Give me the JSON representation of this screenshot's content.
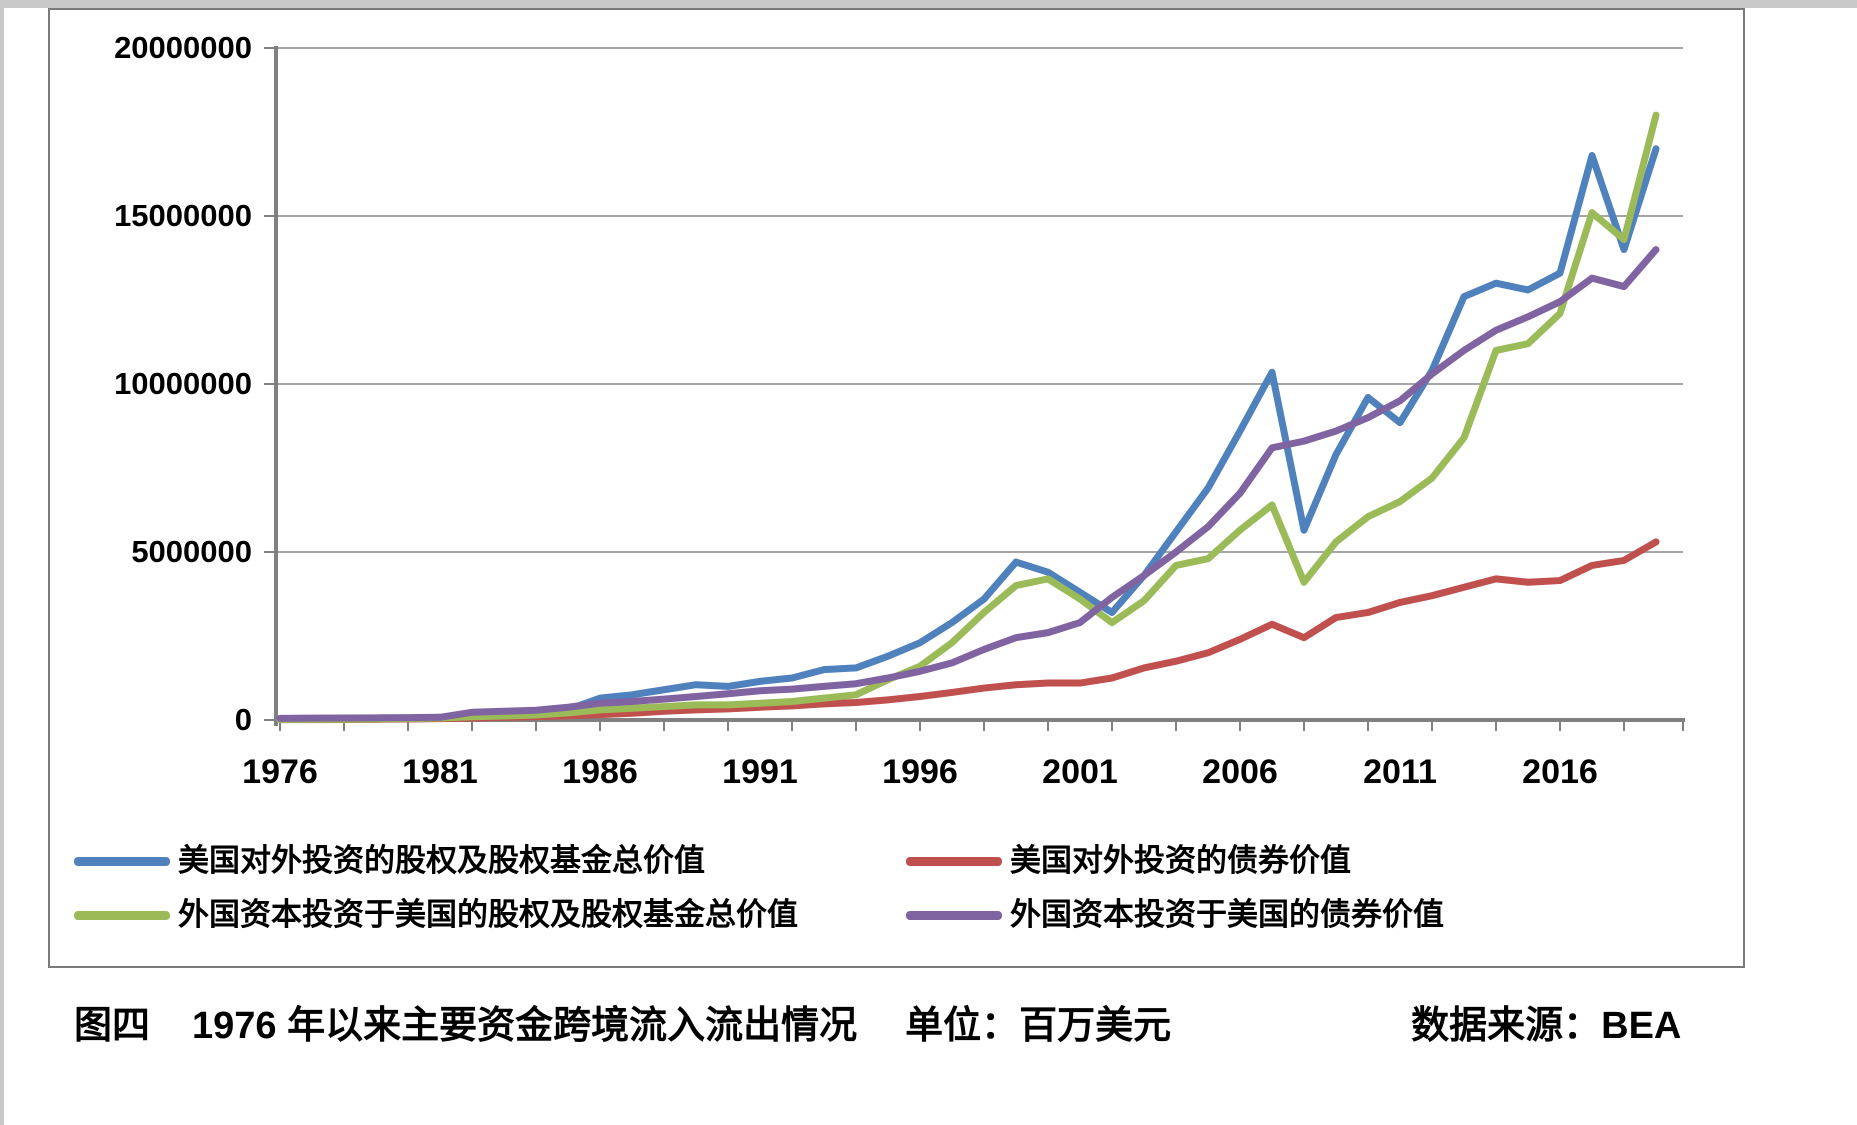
{
  "colors": {
    "series_blue": "#4F81BD",
    "series_red": "#C0504D",
    "series_green": "#9BBB59",
    "series_purple": "#8064A2",
    "gridline": "#A6A6A6",
    "axis": "#808080",
    "frame_border": "#7A7A7A",
    "page_edge_strip": "#C9C9C9",
    "text": "#000000"
  },
  "chart": {
    "y_axis": {
      "labels": [
        "20000000",
        "15000000",
        "10000000",
        "5000000",
        "0"
      ]
    },
    "x_axis": {
      "labels": [
        "1976",
        "1981",
        "1986",
        "1991",
        "1996",
        "2001",
        "2006",
        "2011",
        "2016"
      ]
    }
  },
  "chart_data": {
    "type": "line",
    "title": "",
    "xlabel": "",
    "ylabel": "",
    "unit": "百万美元",
    "ylim": [
      0,
      20000000
    ],
    "ytick_step": 5000000,
    "xtick_step_years": 2,
    "xtick_label_step_years": 5,
    "grid": "horizontal",
    "legend_position": "bottom",
    "x": [
      1976,
      1977,
      1978,
      1979,
      1980,
      1981,
      1982,
      1983,
      1984,
      1985,
      1986,
      1987,
      1988,
      1989,
      1990,
      1991,
      1992,
      1993,
      1994,
      1995,
      1996,
      1997,
      1998,
      1999,
      2000,
      2001,
      2002,
      2003,
      2004,
      2005,
      2006,
      2007,
      2008,
      2009,
      2010,
      2011,
      2012,
      2013,
      2014,
      2015,
      2016,
      2017,
      2018,
      2019
    ],
    "series": [
      {
        "name": "美国对外投资的股权及股权基金总价值",
        "color": "#4F81BD",
        "values": [
          20000,
          25000,
          30000,
          40000,
          60000,
          80000,
          120000,
          160000,
          200000,
          310000,
          650000,
          750000,
          900000,
          1050000,
          1000000,
          1150000,
          1250000,
          1500000,
          1550000,
          1900000,
          2300000,
          2900000,
          3600000,
          4700000,
          4400000,
          3800000,
          3200000,
          4300000,
          5600000,
          6900000,
          8600000,
          10350000,
          5650000,
          7900000,
          9600000,
          8850000,
          10400000,
          12600000,
          13000000,
          12800000,
          13300000,
          16800000,
          14000000,
          17000000
        ]
      },
      {
        "name": "美国对外投资的债券价值",
        "color": "#C0504D",
        "values": [
          10000,
          12000,
          15000,
          20000,
          28000,
          40000,
          60000,
          80000,
          100000,
          125000,
          160000,
          200000,
          260000,
          300000,
          330000,
          380000,
          420000,
          480000,
          520000,
          600000,
          700000,
          820000,
          950000,
          1050000,
          1100000,
          1100000,
          1250000,
          1550000,
          1750000,
          2000000,
          2400000,
          2850000,
          2450000,
          3050000,
          3200000,
          3500000,
          3700000,
          3950000,
          4200000,
          4100000,
          4150000,
          4600000,
          4750000,
          5300000
        ]
      },
      {
        "name": "外国资本投资于美国的股权及股权基金总价值",
        "color": "#9BBB59",
        "values": [
          15000,
          18000,
          22000,
          30000,
          45000,
          60000,
          95000,
          120000,
          150000,
          210000,
          300000,
          350000,
          400000,
          450000,
          450000,
          500000,
          550000,
          650000,
          750000,
          1200000,
          1600000,
          2300000,
          3200000,
          4000000,
          4200000,
          3600000,
          2900000,
          3550000,
          4600000,
          4800000,
          5650000,
          6400000,
          4100000,
          5300000,
          6050000,
          6500000,
          7200000,
          8400000,
          11000000,
          11200000,
          12100000,
          15100000,
          14300000,
          18000000
        ]
      },
      {
        "name": "外国资本投资于美国的债券价值",
        "color": "#8064A2",
        "values": [
          50000,
          55000,
          60000,
          65000,
          70000,
          80000,
          230000,
          260000,
          290000,
          380000,
          500000,
          550000,
          620000,
          700000,
          780000,
          870000,
          920000,
          1000000,
          1080000,
          1250000,
          1450000,
          1700000,
          2100000,
          2450000,
          2600000,
          2900000,
          3650000,
          4300000,
          5000000,
          5750000,
          6750000,
          8100000,
          8300000,
          8600000,
          9000000,
          9500000,
          10300000,
          11000000,
          11600000,
          12000000,
          12450000,
          13150000,
          12900000,
          14000000
        ]
      }
    ]
  },
  "legend": {
    "items": [
      {
        "label": "美国对外投资的股权及股权基金总价值",
        "color": "#4F81BD"
      },
      {
        "label": "美国对外投资的债券价值",
        "color": "#C0504D"
      },
      {
        "label": "外国资本投资于美国的股权及股权基金总价值",
        "color": "#9BBB59"
      },
      {
        "label": "外国资本投资于美国的债券价值",
        "color": "#8064A2"
      }
    ]
  },
  "caption": {
    "fig_label": "图四",
    "title": "1976 年以来主要资金跨境流入流出情况",
    "unit": "单位：百万美元",
    "source": "数据来源：BEA"
  }
}
